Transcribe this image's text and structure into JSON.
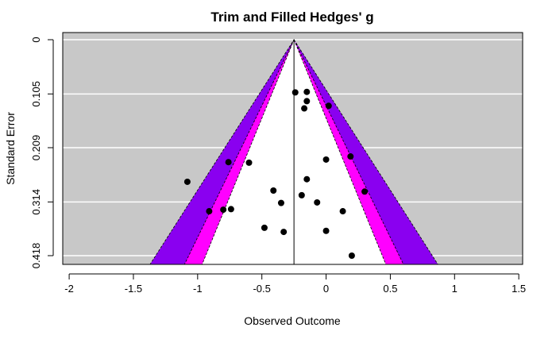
{
  "chart_data": {
    "type": "scatter",
    "subtype": "contour-enhanced funnel plot",
    "title": "Trim and Filled Hedges' g",
    "xlabel": "Observed Outcome",
    "ylabel": "Standard Error",
    "xlim": [
      -2.05,
      1.53
    ],
    "ylim": [
      0,
      0.418
    ],
    "y_reversed": true,
    "x_ticks": [
      -2,
      -1.5,
      -1,
      -0.5,
      0,
      0.5,
      1,
      1.5
    ],
    "x_tick_labels": [
      "-2",
      "-1.5",
      "-1",
      "-0.5",
      "0",
      "0.5",
      "1",
      "1.5"
    ],
    "y_ticks": [
      0,
      0.105,
      0.209,
      0.314,
      0.418
    ],
    "y_tick_labels": [
      "0",
      "0.105",
      "0.209",
      "0.314",
      "0.418"
    ],
    "grid": "horizontal",
    "background_color": "#c8c8c8",
    "center_estimate": -0.25,
    "contours": [
      {
        "level": "p < 0.01",
        "z": 2.576,
        "color": "#8a00f0"
      },
      {
        "level": "p < 0.05",
        "z": 1.96,
        "color": "#ff00ff"
      },
      {
        "level": "p < 0.10",
        "z": 1.645,
        "color": "#ffffff"
      }
    ],
    "points": [
      {
        "x": -0.24,
        "y": 0.102
      },
      {
        "x": -0.15,
        "y": 0.101
      },
      {
        "x": -0.15,
        "y": 0.119
      },
      {
        "x": -0.17,
        "y": 0.133
      },
      {
        "x": 0.02,
        "y": 0.128
      },
      {
        "x": -0.76,
        "y": 0.237
      },
      {
        "x": -0.6,
        "y": 0.238
      },
      {
        "x": 0.0,
        "y": 0.232
      },
      {
        "x": 0.19,
        "y": 0.226
      },
      {
        "x": -1.08,
        "y": 0.275
      },
      {
        "x": -0.15,
        "y": 0.27
      },
      {
        "x": -0.41,
        "y": 0.292
      },
      {
        "x": 0.3,
        "y": 0.294
      },
      {
        "x": -0.19,
        "y": 0.301
      },
      {
        "x": -0.35,
        "y": 0.316
      },
      {
        "x": -0.07,
        "y": 0.315
      },
      {
        "x": -0.91,
        "y": 0.332
      },
      {
        "x": -0.8,
        "y": 0.329
      },
      {
        "x": -0.74,
        "y": 0.328
      },
      {
        "x": 0.13,
        "y": 0.332
      },
      {
        "x": -0.48,
        "y": 0.364
      },
      {
        "x": -0.33,
        "y": 0.372
      },
      {
        "x": 0.0,
        "y": 0.37
      },
      {
        "x": 0.2,
        "y": 0.418
      }
    ]
  }
}
